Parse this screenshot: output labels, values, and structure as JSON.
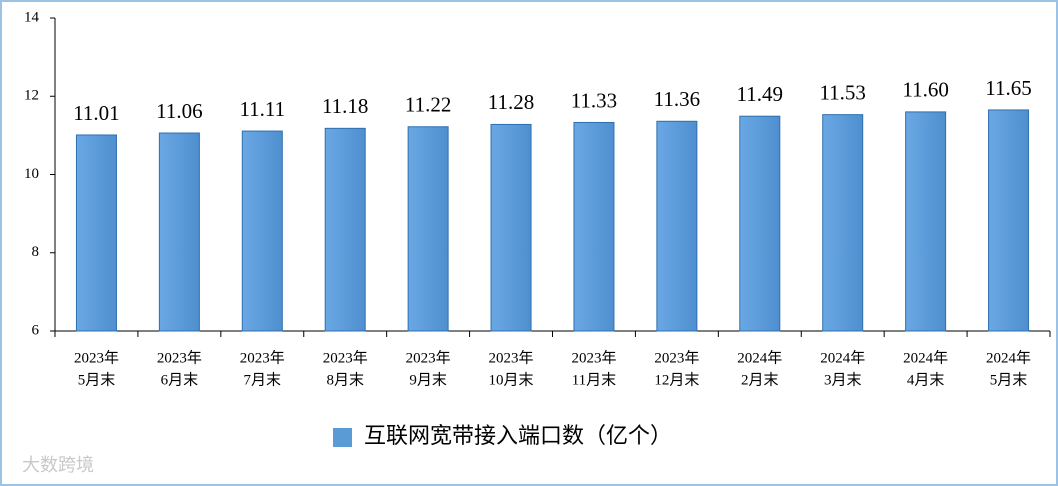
{
  "chart_data": {
    "type": "bar",
    "categories": [
      [
        "2023年",
        "5月末"
      ],
      [
        "2023年",
        "6月末"
      ],
      [
        "2023年",
        "7月末"
      ],
      [
        "2023年",
        "8月末"
      ],
      [
        "2023年",
        "9月末"
      ],
      [
        "2023年",
        "10月末"
      ],
      [
        "2023年",
        "11月末"
      ],
      [
        "2023年",
        "12月末"
      ],
      [
        "2024年",
        "2月末"
      ],
      [
        "2024年",
        "3月末"
      ],
      [
        "2024年",
        "4月末"
      ],
      [
        "2024年",
        "5月末"
      ]
    ],
    "series": [
      {
        "name": "互联网宽带接入端口数（亿个）",
        "color": "#5b9bd5",
        "values": [
          11.01,
          11.06,
          11.11,
          11.18,
          11.22,
          11.28,
          11.33,
          11.36,
          11.49,
          11.53,
          11.6,
          11.65
        ],
        "value_labels": [
          "11.01",
          "11.06",
          "11.11",
          "11.18",
          "11.22",
          "11.28",
          "11.33",
          "11.36",
          "11.49",
          "11.53",
          "11.60",
          "11.65"
        ]
      }
    ],
    "ylim": [
      6,
      14
    ],
    "yticks": [
      6,
      8,
      10,
      12,
      14
    ],
    "grid": false,
    "watermark": "大数跨境"
  }
}
